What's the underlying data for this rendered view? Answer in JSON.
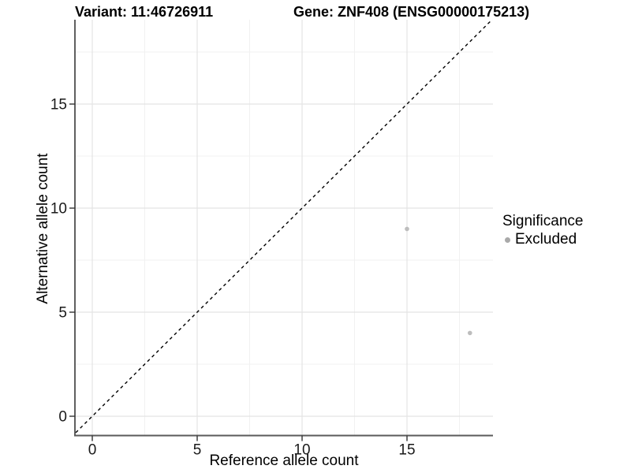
{
  "chart_data": {
    "type": "scatter",
    "title_parts": {
      "variant": "Variant: 11:46726911",
      "gene": "Gene: ZNF408 (ENSG00000175213)"
    },
    "xlabel": "Reference allele count",
    "ylabel": "Alternative allele count",
    "xlim": [
      -1,
      19.1
    ],
    "ylim": [
      -1,
      19.1
    ],
    "x_ticks": [
      0,
      5,
      10,
      15
    ],
    "y_ticks": [
      0,
      5,
      10,
      15
    ],
    "x_minor_ticks": [
      2.5,
      7.5,
      12.5,
      17.5
    ],
    "y_minor_ticks": [
      2.5,
      7.5,
      12.5,
      17.5
    ],
    "grid": true,
    "identity_line": {
      "equation": "y = x",
      "style": "dashed",
      "color": "#000000"
    },
    "series": [
      {
        "name": "Excluded",
        "color": "#bdbdbd",
        "points": [
          {
            "x": 15,
            "y": 9
          },
          {
            "x": 18,
            "y": 4
          }
        ]
      }
    ],
    "legend": {
      "title": "Significance",
      "position": "right",
      "entries": [
        {
          "label": "Excluded",
          "color": "#a9a9a9",
          "marker": "circle"
        }
      ]
    },
    "style": {
      "background": "#ffffff",
      "grid_major": "#e4e4e4",
      "grid_minor": "#f1f1f1",
      "axis_line_left": "#2b2b2b",
      "axis_line_bottom": "#5a5a5a",
      "tick_mark": "#333333",
      "tick_label_color": "#1a1a1a",
      "point_radius": 2.8,
      "legend_marker_radius": 3.5
    }
  }
}
